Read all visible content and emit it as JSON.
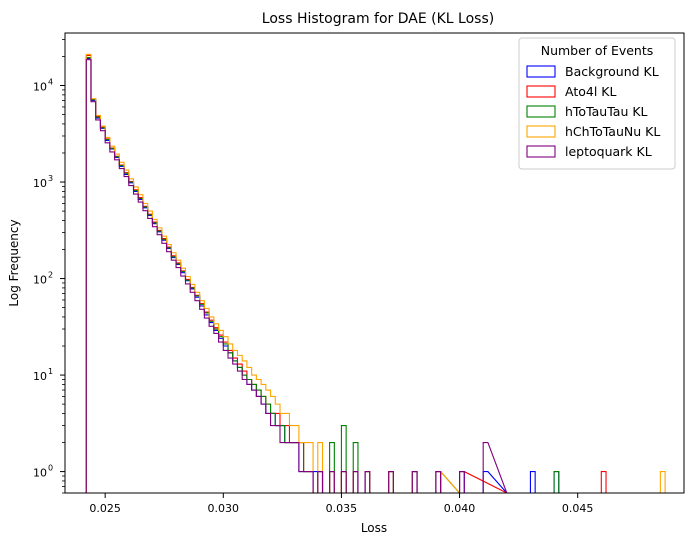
{
  "chart_data": {
    "type": "histogram",
    "title": "Loss Histogram for DAE (KL Loss)",
    "xlabel": "Loss",
    "ylabel": "Log Frequency",
    "yscale": "log",
    "xlim": [
      0.0233,
      0.0495
    ],
    "ylim": [
      0.6,
      35000
    ],
    "xticks": [
      0.025,
      0.03,
      0.035,
      0.04,
      0.045
    ],
    "xtick_labels": [
      "0.025",
      "0.030",
      "0.035",
      "0.040",
      "0.045"
    ],
    "yticks": [
      1,
      10,
      100,
      1000,
      10000
    ],
    "ytick_labels": [
      "10",
      "10",
      "10",
      "10",
      "10"
    ],
    "ytick_exponents": [
      "0",
      "1",
      "2",
      "3",
      "4"
    ],
    "grid": false,
    "legend": {
      "title": "Number of Events",
      "placement": "top-right"
    },
    "series": [
      {
        "name": "Background KL",
        "color": "#0000ff",
        "bins": [
          [
            0.0242,
            19000
          ],
          [
            0.0244,
            7000
          ],
          [
            0.0246,
            4600
          ],
          [
            0.0248,
            3600
          ],
          [
            0.025,
            2700
          ],
          [
            0.0252,
            2200
          ],
          [
            0.0254,
            1800
          ],
          [
            0.0256,
            1450
          ],
          [
            0.0258,
            1200
          ],
          [
            0.026,
            980
          ],
          [
            0.0262,
            800
          ],
          [
            0.0264,
            660
          ],
          [
            0.0266,
            540
          ],
          [
            0.0268,
            450
          ],
          [
            0.027,
            370
          ],
          [
            0.0272,
            305
          ],
          [
            0.0274,
            250
          ],
          [
            0.0276,
            205
          ],
          [
            0.0278,
            165
          ],
          [
            0.028,
            140
          ],
          [
            0.0282,
            115
          ],
          [
            0.0284,
            95
          ],
          [
            0.0286,
            78
          ],
          [
            0.0288,
            64
          ],
          [
            0.029,
            52
          ],
          [
            0.0292,
            42
          ],
          [
            0.0294,
            35
          ],
          [
            0.0296,
            29
          ],
          [
            0.0298,
            24
          ],
          [
            0.03,
            20
          ],
          [
            0.0302,
            17
          ],
          [
            0.0304,
            14
          ],
          [
            0.0306,
            12
          ],
          [
            0.0308,
            10
          ],
          [
            0.031,
            8
          ],
          [
            0.0312,
            7
          ],
          [
            0.0314,
            6
          ],
          [
            0.0316,
            5
          ],
          [
            0.0318,
            4
          ],
          [
            0.032,
            4
          ],
          [
            0.0322,
            3
          ],
          [
            0.0324,
            3
          ],
          [
            0.0326,
            2
          ],
          [
            0.0328,
            2
          ],
          [
            0.033,
            2
          ],
          [
            0.0332,
            1
          ],
          [
            0.0334,
            1
          ],
          [
            0.0336,
            1
          ],
          [
            0.0338,
            1
          ],
          [
            0.034,
            1
          ],
          [
            0.0345,
            1
          ],
          [
            0.035,
            1
          ],
          [
            0.0355,
            1
          ],
          [
            0.036,
            1
          ],
          [
            0.037,
            1
          ],
          [
            0.038,
            1
          ],
          [
            0.039,
            1
          ],
          [
            0.04,
            1
          ],
          [
            0.041,
            1
          ],
          [
            0.042,
            0
          ],
          [
            0.043,
            1
          ],
          [
            0.044,
            1
          ]
        ]
      },
      {
        "name": "Ato4l KL",
        "color": "#ff0000",
        "bins": [
          [
            0.0242,
            20500
          ],
          [
            0.0244,
            7200
          ],
          [
            0.0246,
            4800
          ],
          [
            0.0248,
            3700
          ],
          [
            0.025,
            2800
          ],
          [
            0.0252,
            2250
          ],
          [
            0.0254,
            1850
          ],
          [
            0.0256,
            1500
          ],
          [
            0.0258,
            1250
          ],
          [
            0.026,
            1010
          ],
          [
            0.0262,
            830
          ],
          [
            0.0264,
            690
          ],
          [
            0.0266,
            560
          ],
          [
            0.0268,
            465
          ],
          [
            0.027,
            385
          ],
          [
            0.0272,
            315
          ],
          [
            0.0274,
            260
          ],
          [
            0.0276,
            212
          ],
          [
            0.0278,
            172
          ],
          [
            0.028,
            145
          ],
          [
            0.0282,
            120
          ],
          [
            0.0284,
            98
          ],
          [
            0.0286,
            81
          ],
          [
            0.0288,
            67
          ],
          [
            0.029,
            55
          ],
          [
            0.0292,
            45
          ],
          [
            0.0294,
            37
          ],
          [
            0.0296,
            31
          ],
          [
            0.0298,
            26
          ],
          [
            0.03,
            22
          ],
          [
            0.0302,
            18
          ],
          [
            0.0304,
            15
          ],
          [
            0.0306,
            13
          ],
          [
            0.0308,
            11
          ],
          [
            0.031,
            9
          ],
          [
            0.0312,
            8
          ],
          [
            0.0314,
            7
          ],
          [
            0.0316,
            6
          ],
          [
            0.0318,
            5
          ],
          [
            0.032,
            4
          ],
          [
            0.0322,
            4
          ],
          [
            0.0324,
            3
          ],
          [
            0.0326,
            3
          ],
          [
            0.0328,
            2
          ],
          [
            0.033,
            2
          ],
          [
            0.0332,
            2
          ],
          [
            0.0334,
            1
          ],
          [
            0.0336,
            1
          ],
          [
            0.034,
            1
          ],
          [
            0.0345,
            1
          ],
          [
            0.035,
            1
          ],
          [
            0.0355,
            1
          ],
          [
            0.036,
            1
          ],
          [
            0.037,
            1
          ],
          [
            0.038,
            1
          ],
          [
            0.039,
            1
          ],
          [
            0.04,
            1
          ],
          [
            0.042,
            0
          ],
          [
            0.046,
            1
          ]
        ]
      },
      {
        "name": "hToTauTau KL",
        "color": "#008000",
        "bins": [
          [
            0.0242,
            19500
          ],
          [
            0.0244,
            7100
          ],
          [
            0.0246,
            4700
          ],
          [
            0.0248,
            3650
          ],
          [
            0.025,
            2750
          ],
          [
            0.0252,
            2230
          ],
          [
            0.0254,
            1830
          ],
          [
            0.0256,
            1480
          ],
          [
            0.0258,
            1230
          ],
          [
            0.026,
            1000
          ],
          [
            0.0262,
            815
          ],
          [
            0.0264,
            675
          ],
          [
            0.0266,
            550
          ],
          [
            0.0268,
            458
          ],
          [
            0.027,
            378
          ],
          [
            0.0272,
            310
          ],
          [
            0.0274,
            255
          ],
          [
            0.0276,
            208
          ],
          [
            0.0278,
            168
          ],
          [
            0.028,
            142
          ],
          [
            0.0282,
            118
          ],
          [
            0.0284,
            96
          ],
          [
            0.0286,
            80
          ],
          [
            0.0288,
            66
          ],
          [
            0.029,
            54
          ],
          [
            0.0292,
            44
          ],
          [
            0.0294,
            36
          ],
          [
            0.0296,
            30
          ],
          [
            0.0298,
            25
          ],
          [
            0.03,
            21
          ],
          [
            0.0302,
            17
          ],
          [
            0.0304,
            14
          ],
          [
            0.0306,
            12
          ],
          [
            0.0308,
            10
          ],
          [
            0.031,
            9
          ],
          [
            0.0312,
            8
          ],
          [
            0.0314,
            7
          ],
          [
            0.0316,
            6
          ],
          [
            0.0318,
            5
          ],
          [
            0.032,
            4
          ],
          [
            0.0322,
            3
          ],
          [
            0.0324,
            3
          ],
          [
            0.0326,
            2
          ],
          [
            0.0328,
            2
          ],
          [
            0.033,
            2
          ],
          [
            0.0332,
            2
          ],
          [
            0.0334,
            1
          ],
          [
            0.0336,
            1
          ],
          [
            0.034,
            1
          ],
          [
            0.0345,
            2
          ],
          [
            0.035,
            3
          ],
          [
            0.0355,
            2
          ],
          [
            0.036,
            1
          ],
          [
            0.037,
            1
          ],
          [
            0.038,
            1
          ],
          [
            0.039,
            1
          ],
          [
            0.04,
            0
          ],
          [
            0.044,
            1
          ]
        ]
      },
      {
        "name": "hChToTauNu KL",
        "color": "#ffa500",
        "bins": [
          [
            0.0242,
            21000
          ],
          [
            0.0244,
            7300
          ],
          [
            0.0246,
            4900
          ],
          [
            0.0248,
            3800
          ],
          [
            0.025,
            2900
          ],
          [
            0.0252,
            2350
          ],
          [
            0.0254,
            1950
          ],
          [
            0.0256,
            1600
          ],
          [
            0.0258,
            1330
          ],
          [
            0.026,
            1080
          ],
          [
            0.0262,
            890
          ],
          [
            0.0264,
            740
          ],
          [
            0.0266,
            600
          ],
          [
            0.0268,
            500
          ],
          [
            0.027,
            410
          ],
          [
            0.0272,
            335
          ],
          [
            0.0274,
            275
          ],
          [
            0.0276,
            225
          ],
          [
            0.0278,
            185
          ],
          [
            0.028,
            155
          ],
          [
            0.0282,
            128
          ],
          [
            0.0284,
            105
          ],
          [
            0.0286,
            87
          ],
          [
            0.0288,
            72
          ],
          [
            0.029,
            59
          ],
          [
            0.0292,
            49
          ],
          [
            0.0294,
            40
          ],
          [
            0.0296,
            34
          ],
          [
            0.0298,
            29
          ],
          [
            0.03,
            25
          ],
          [
            0.0302,
            21
          ],
          [
            0.0304,
            18
          ],
          [
            0.0306,
            16
          ],
          [
            0.0308,
            14
          ],
          [
            0.031,
            12
          ],
          [
            0.0312,
            10
          ],
          [
            0.0314,
            9
          ],
          [
            0.0316,
            8
          ],
          [
            0.0318,
            7
          ],
          [
            0.032,
            6
          ],
          [
            0.0322,
            5
          ],
          [
            0.0324,
            4
          ],
          [
            0.0326,
            4
          ],
          [
            0.0328,
            3
          ],
          [
            0.033,
            3
          ],
          [
            0.0332,
            2
          ],
          [
            0.0334,
            2
          ],
          [
            0.0336,
            2
          ],
          [
            0.034,
            2
          ],
          [
            0.0345,
            1
          ],
          [
            0.035,
            1
          ],
          [
            0.0355,
            1
          ],
          [
            0.036,
            1
          ],
          [
            0.037,
            1
          ],
          [
            0.038,
            1
          ],
          [
            0.039,
            1
          ],
          [
            0.04,
            0
          ],
          [
            0.0485,
            1
          ]
        ]
      },
      {
        "name": "leptoquark KL",
        "color": "#800080",
        "bins": [
          [
            0.0242,
            18500
          ],
          [
            0.0244,
            6800
          ],
          [
            0.0246,
            4400
          ],
          [
            0.0248,
            3400
          ],
          [
            0.025,
            2550
          ],
          [
            0.0252,
            2050
          ],
          [
            0.0254,
            1700
          ],
          [
            0.0256,
            1380
          ],
          [
            0.0258,
            1140
          ],
          [
            0.026,
            920
          ],
          [
            0.0262,
            750
          ],
          [
            0.0264,
            620
          ],
          [
            0.0266,
            505
          ],
          [
            0.0268,
            420
          ],
          [
            0.027,
            345
          ],
          [
            0.0272,
            285
          ],
          [
            0.0274,
            232
          ],
          [
            0.0276,
            190
          ],
          [
            0.0278,
            155
          ],
          [
            0.028,
            130
          ],
          [
            0.0282,
            106
          ],
          [
            0.0284,
            88
          ],
          [
            0.0286,
            72
          ],
          [
            0.0288,
            59
          ],
          [
            0.029,
            48
          ],
          [
            0.0292,
            39
          ],
          [
            0.0294,
            32
          ],
          [
            0.0296,
            27
          ],
          [
            0.0298,
            22
          ],
          [
            0.03,
            18
          ],
          [
            0.0302,
            15
          ],
          [
            0.0304,
            13
          ],
          [
            0.0306,
            11
          ],
          [
            0.0308,
            9
          ],
          [
            0.031,
            8
          ],
          [
            0.0312,
            7
          ],
          [
            0.0314,
            6
          ],
          [
            0.0316,
            5
          ],
          [
            0.0318,
            4
          ],
          [
            0.032,
            3
          ],
          [
            0.0322,
            3
          ],
          [
            0.0324,
            2
          ],
          [
            0.0326,
            2
          ],
          [
            0.0328,
            2
          ],
          [
            0.033,
            2
          ],
          [
            0.0332,
            1
          ],
          [
            0.0334,
            1
          ],
          [
            0.0336,
            1
          ],
          [
            0.034,
            1
          ],
          [
            0.0345,
            1
          ],
          [
            0.035,
            1
          ],
          [
            0.0355,
            1
          ],
          [
            0.036,
            1
          ],
          [
            0.037,
            1
          ],
          [
            0.038,
            1
          ],
          [
            0.039,
            1
          ],
          [
            0.04,
            1
          ],
          [
            0.041,
            2
          ],
          [
            0.042,
            0
          ]
        ]
      }
    ]
  }
}
